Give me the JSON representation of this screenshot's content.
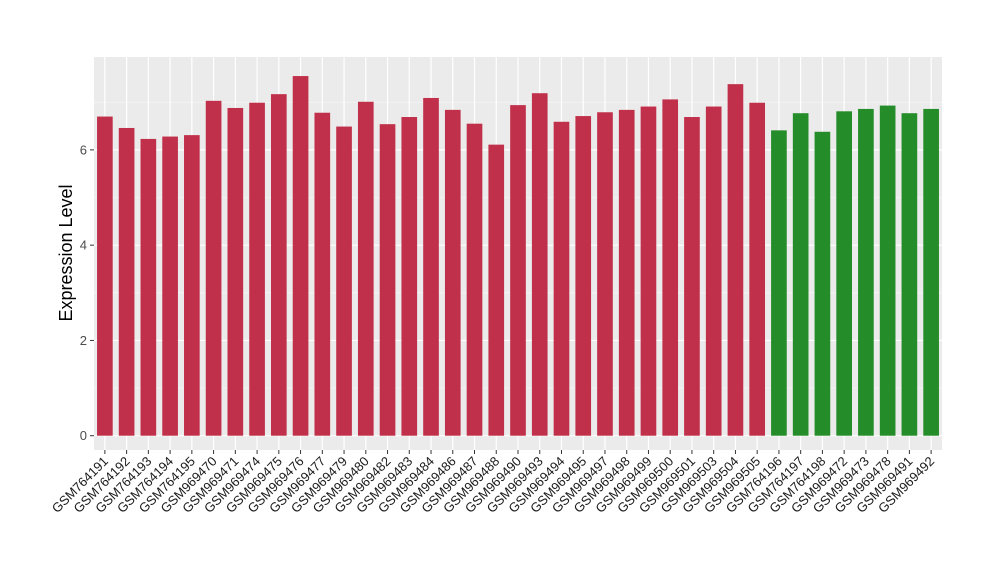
{
  "chart_data": {
    "type": "bar",
    "xlabel": "",
    "ylabel": "Expression Level",
    "ylim": [
      -0.3,
      7.95
    ],
    "yticks": [
      0,
      2,
      4,
      6
    ],
    "grid": true,
    "panel_background": "#ebebeb",
    "categories": [
      "GSM764191",
      "GSM764192",
      "GSM764193",
      "GSM764194",
      "GSM764195",
      "GSM969470",
      "GSM969471",
      "GSM969474",
      "GSM969475",
      "GSM969476",
      "GSM969477",
      "GSM969479",
      "GSM969480",
      "GSM969482",
      "GSM969483",
      "GSM969484",
      "GSM969486",
      "GSM969487",
      "GSM969488",
      "GSM969490",
      "GSM969493",
      "GSM969494",
      "GSM969495",
      "GSM969497",
      "GSM969498",
      "GSM969499",
      "GSM969500",
      "GSM969501",
      "GSM969503",
      "GSM969504",
      "GSM969505",
      "GSM764196",
      "GSM764197",
      "GSM764198",
      "GSM969472",
      "GSM969473",
      "GSM969478",
      "GSM969491",
      "GSM969492"
    ],
    "values": [
      6.7,
      6.46,
      6.23,
      6.28,
      6.31,
      7.03,
      6.88,
      6.99,
      7.17,
      7.55,
      6.78,
      6.49,
      7.01,
      6.54,
      6.69,
      7.09,
      6.84,
      6.55,
      6.11,
      6.94,
      7.19,
      6.59,
      6.71,
      6.79,
      6.84,
      6.91,
      7.06,
      6.69,
      6.91,
      7.38,
      6.99,
      6.41,
      6.77,
      6.38,
      6.81,
      6.86,
      6.93,
      6.77,
      6.86
    ],
    "bar_colors": [
      "#c1304a",
      "#c1304a",
      "#c1304a",
      "#c1304a",
      "#c1304a",
      "#c1304a",
      "#c1304a",
      "#c1304a",
      "#c1304a",
      "#c1304a",
      "#c1304a",
      "#c1304a",
      "#c1304a",
      "#c1304a",
      "#c1304a",
      "#c1304a",
      "#c1304a",
      "#c1304a",
      "#c1304a",
      "#c1304a",
      "#c1304a",
      "#c1304a",
      "#c1304a",
      "#c1304a",
      "#c1304a",
      "#c1304a",
      "#c1304a",
      "#c1304a",
      "#c1304a",
      "#c1304a",
      "#c1304a",
      "#248c28",
      "#248c28",
      "#248c28",
      "#248c28",
      "#248c28",
      "#248c28",
      "#248c28",
      "#248c28"
    ]
  }
}
